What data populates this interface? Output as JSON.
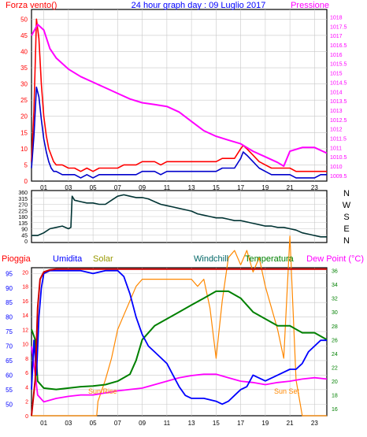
{
  "colors": {
    "background": "#ffffff",
    "frame": "#000000",
    "grid": "#c8c8c8",
    "wind": "#ff0000",
    "gust_outline": "#0000cc",
    "pressure": "#ff00ff",
    "direction": "#003333",
    "humidity": "#0000ff",
    "solar": "#ff8800",
    "windchill": "#006666",
    "temperature": "#008000",
    "dewpoint": "#ff00ff",
    "rain": "#cc0000",
    "title_blue": "#0000ff",
    "olive": "#999900"
  },
  "chart_data": [
    {
      "type": "line",
      "title": "24 hour graph day : 09 Luglio 2017",
      "ylabel_left": "Forza vento()",
      "ylabel_right": "Pressione",
      "xticks": [
        "01",
        "03",
        "05",
        "07",
        "09",
        "11",
        "13",
        "15",
        "17",
        "19",
        "21",
        "23"
      ],
      "yticks_left": [
        0,
        5,
        10,
        15,
        20,
        25,
        30,
        35,
        40,
        45,
        50
      ],
      "yticks_right": [
        "1009.5",
        "1010",
        "1010.5",
        "1011",
        "1011.5",
        "1012",
        "1012.5",
        "1013",
        "1013.5",
        "1014",
        "1014.5",
        "1015",
        "1015.5",
        "1016",
        "1016.5",
        "1017",
        "1017.5",
        "1018"
      ],
      "ylim_left": [
        0,
        53
      ],
      "ylim_right": [
        1009.2,
        1018.4
      ],
      "xlim": [
        0,
        24
      ],
      "series": [
        {
          "key": "wind",
          "x": [
            0,
            0.2,
            0.4,
            0.6,
            0.8,
            1,
            1.2,
            1.4,
            1.6,
            1.8,
            2,
            2.5,
            3,
            3.5,
            4,
            4.5,
            5,
            5.5,
            6,
            6.5,
            7,
            7.5,
            8,
            8.5,
            9,
            9.5,
            10,
            10.5,
            11,
            11.5,
            12,
            12.5,
            13,
            13.5,
            14,
            14.5,
            15,
            15.5,
            16,
            16.5,
            17,
            17.2,
            17.5,
            18,
            18.5,
            19,
            19.5,
            20,
            20.5,
            21,
            21.5,
            22,
            22.5,
            23,
            23.5,
            24
          ],
          "values": [
            6,
            22,
            50,
            44,
            30,
            20,
            14,
            10,
            8,
            6,
            5,
            5,
            4,
            4,
            3,
            4,
            3,
            4,
            4,
            4,
            4,
            5,
            5,
            5,
            6,
            6,
            6,
            5,
            6,
            6,
            6,
            6,
            6,
            6,
            6,
            6,
            6,
            7,
            7,
            7,
            10,
            11,
            10,
            8,
            6,
            5,
            4,
            4,
            4,
            4,
            3,
            3,
            3,
            3,
            3,
            3
          ]
        },
        {
          "key": "gust",
          "x": [
            0,
            0.2,
            0.4,
            0.6,
            0.8,
            1,
            1.2,
            1.4,
            1.6,
            1.8,
            2,
            2.5,
            3,
            3.5,
            4,
            4.5,
            5,
            5.5,
            6,
            6.5,
            7,
            7.5,
            8,
            8.5,
            9,
            9.5,
            10,
            10.5,
            11,
            11.5,
            12,
            12.5,
            13,
            13.5,
            14,
            14.5,
            15,
            15.5,
            16,
            16.5,
            17,
            17.2,
            17.5,
            18,
            18.5,
            19,
            19.5,
            20,
            20.5,
            21,
            21.5,
            22,
            22.5,
            23,
            23.5,
            24
          ],
          "values": [
            4,
            14,
            29,
            26,
            19,
            13,
            9,
            6,
            4,
            3,
            3,
            2,
            2,
            2,
            1,
            2,
            1,
            2,
            2,
            2,
            2,
            2,
            2,
            2,
            3,
            3,
            3,
            2,
            3,
            3,
            3,
            3,
            3,
            3,
            3,
            3,
            3,
            4,
            4,
            4,
            7,
            9,
            8,
            6,
            4,
            3,
            2,
            2,
            2,
            2,
            1,
            1,
            1,
            1,
            2,
            2
          ]
        },
        {
          "key": "pressure",
          "x": [
            0,
            0.5,
            1,
            1.5,
            2,
            3,
            4,
            5,
            6,
            7,
            8,
            9,
            10,
            11,
            12,
            13,
            14,
            15,
            16,
            17,
            17.5,
            18,
            19,
            20,
            20.5,
            21,
            22,
            23,
            24
          ],
          "values": [
            1017.0,
            1017.6,
            1017.3,
            1016.3,
            1015.8,
            1015.2,
            1014.8,
            1014.5,
            1014.2,
            1013.9,
            1013.6,
            1013.4,
            1013.3,
            1013.2,
            1012.9,
            1012.4,
            1011.9,
            1011.6,
            1011.4,
            1011.2,
            1011.0,
            1010.8,
            1010.5,
            1010.2,
            1010.0,
            1010.8,
            1011.0,
            1011.0,
            1010.7
          ]
        }
      ]
    },
    {
      "type": "line",
      "title": "",
      "yticks": [
        0,
        45,
        90,
        135,
        180,
        225,
        270,
        315,
        360
      ],
      "compass_labels": [
        "N",
        "W",
        "S",
        "E",
        "N"
      ],
      "ylim": [
        0,
        360
      ],
      "xlim": [
        0,
        24
      ],
      "series": [
        {
          "key": "direction",
          "x": [
            0,
            0.5,
            1,
            1.5,
            2,
            2.5,
            3,
            3.2,
            3.3,
            3.5,
            4,
            4.5,
            5,
            5.5,
            6,
            6.5,
            7,
            7.5,
            8,
            8.5,
            9,
            9.5,
            10,
            10.5,
            11,
            11.5,
            12,
            12.5,
            13,
            13.5,
            14,
            14.5,
            15,
            15.5,
            16,
            16.5,
            17,
            17.5,
            18,
            18.5,
            19,
            19.5,
            20,
            20.5,
            21,
            21.5,
            22,
            22.5,
            23,
            23.5,
            24
          ],
          "values": [
            40,
            40,
            60,
            90,
            100,
            110,
            90,
            100,
            330,
            300,
            290,
            280,
            280,
            270,
            270,
            300,
            330,
            340,
            330,
            320,
            320,
            310,
            290,
            270,
            260,
            250,
            240,
            230,
            220,
            200,
            190,
            180,
            170,
            170,
            160,
            150,
            150,
            140,
            130,
            120,
            110,
            110,
            100,
            100,
            90,
            80,
            60,
            50,
            40,
            30,
            30
          ]
        }
      ]
    },
    {
      "type": "line",
      "title": "",
      "labels": [
        "Pioggia",
        "Umidita",
        "Solar",
        "Windchill",
        "Temperatura",
        "Dew Point (°C)"
      ],
      "annotations": [
        "Sun Rise",
        "Sun Set"
      ],
      "xticks": [
        "01",
        "03",
        "05",
        "07",
        "09",
        "11",
        "13",
        "15",
        "17",
        "19",
        "21",
        "23"
      ],
      "yticks_rain": [
        0,
        2,
        4,
        6,
        8,
        10,
        12,
        14,
        16,
        18,
        20
      ],
      "yticks_humidity": [
        50,
        55,
        60,
        65,
        70,
        75,
        80,
        85,
        90,
        95
      ],
      "yticks_temp": [
        16,
        18,
        20,
        22,
        24,
        26,
        28,
        30,
        32,
        34,
        36
      ],
      "ylim_humidity": [
        46,
        97
      ],
      "ylim_temp": [
        15.0,
        36.4
      ],
      "ylim_rain": [
        0,
        20.6
      ],
      "xlim": [
        0,
        24
      ],
      "series": [
        {
          "key": "rain",
          "x": [
            0,
            0.3,
            0.5,
            0.7,
            1,
            1.5,
            2,
            24
          ],
          "values": [
            0,
            5,
            15,
            19,
            20,
            20.3,
            20.4,
            20.4
          ]
        },
        {
          "key": "humidity",
          "x": [
            0,
            0.2,
            0.4,
            0.6,
            0.8,
            1,
            1.5,
            2,
            3,
            4,
            5,
            6,
            7,
            7.5,
            8,
            8.5,
            9,
            9.5,
            10,
            11,
            11.5,
            12,
            12.5,
            13,
            14,
            15,
            15.5,
            16,
            16.5,
            17,
            17.5,
            18,
            19,
            20,
            21,
            21.5,
            22,
            22.5,
            23,
            23.5,
            24
          ],
          "values": [
            55,
            72,
            60,
            80,
            90,
            95,
            96,
            96,
            96,
            96,
            95,
            96,
            96,
            94,
            88,
            80,
            74,
            70,
            68,
            64,
            60,
            56,
            53,
            52,
            52,
            51,
            50,
            51,
            53,
            55,
            56,
            60,
            58,
            60,
            62,
            62,
            64,
            68,
            70,
            72,
            72
          ]
        },
        {
          "key": "solar",
          "x": [
            0,
            5.3,
            5.4,
            6,
            6.5,
            7,
            7.5,
            8,
            8.5,
            9,
            9.5,
            10,
            10.5,
            11,
            12,
            13,
            13.5,
            14,
            14.5,
            15,
            15.5,
            16,
            16.5,
            17,
            17.5,
            18,
            18.5,
            19,
            19.5,
            20,
            20.5,
            21,
            21.5,
            22,
            24
          ],
          "values": [
            0,
            0,
            2,
            5,
            8,
            12,
            14,
            16,
            18,
            19,
            19,
            19,
            19,
            19,
            19,
            19,
            18,
            19,
            15,
            8,
            16,
            22,
            23,
            21,
            23,
            20,
            22,
            18,
            15,
            12,
            8,
            25,
            5,
            0,
            0
          ]
        },
        {
          "key": "windchill",
          "x": [
            0,
            0.3,
            0.5,
            1,
            2,
            3,
            4,
            5,
            6,
            7,
            8,
            8.5,
            9,
            10,
            11,
            12,
            13,
            14,
            15,
            16,
            17,
            18,
            19,
            20,
            21,
            22,
            23,
            24
          ],
          "values": [
            27.5,
            26,
            20,
            19,
            18.8,
            19,
            19.2,
            19.3,
            19.5,
            20,
            21,
            23,
            26,
            28,
            29,
            30,
            31,
            32,
            33,
            33,
            32,
            30,
            29,
            28,
            28,
            27,
            27,
            26
          ]
        },
        {
          "key": "temperature",
          "x": [
            0,
            0.3,
            0.5,
            1,
            2,
            3,
            4,
            5,
            6,
            7,
            8,
            8.5,
            9,
            10,
            11,
            12,
            13,
            14,
            15,
            16,
            17,
            18,
            19,
            20,
            21,
            22,
            23,
            24
          ],
          "values": [
            27.5,
            26,
            20,
            19,
            18.8,
            19,
            19.2,
            19.3,
            19.5,
            20,
            21,
            23,
            26,
            28,
            29,
            30,
            31,
            32,
            33,
            33,
            32,
            30,
            29,
            28,
            28,
            27,
            27,
            26
          ]
        },
        {
          "key": "dewpoint",
          "x": [
            0,
            0.3,
            0.5,
            1,
            2,
            3,
            4,
            5,
            6,
            7,
            8,
            9,
            10,
            11,
            12,
            13,
            14,
            15,
            16,
            17,
            18,
            19,
            20,
            21,
            22,
            23,
            24
          ],
          "values": [
            25,
            21,
            18,
            17,
            17.5,
            17.8,
            18,
            18,
            18.3,
            18.6,
            18.8,
            19,
            19.5,
            20,
            20.5,
            20.8,
            21,
            21,
            20.5,
            20,
            19.8,
            19.5,
            19.8,
            20,
            20.3,
            20.5,
            20.3
          ]
        }
      ]
    }
  ]
}
